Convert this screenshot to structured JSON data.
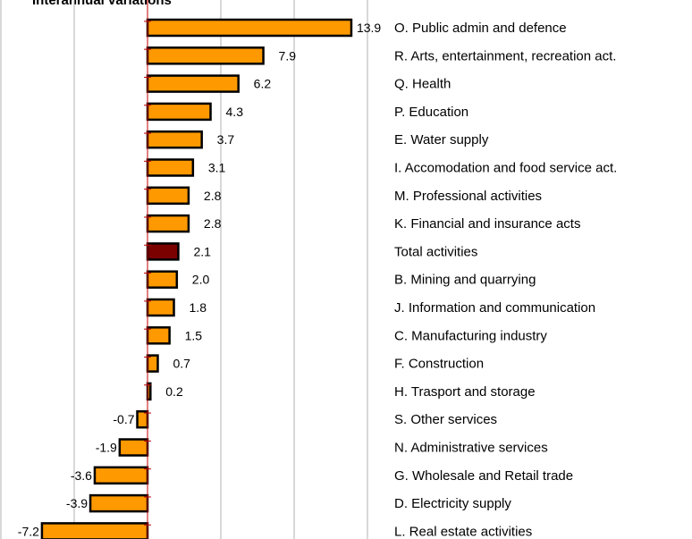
{
  "chart_data": {
    "type": "bar",
    "orientation": "horizontal",
    "title": "Interannual variations",
    "categories": [
      "O. Public admin and defence",
      "R. Arts, entertainment, recreation act.",
      "Q. Health",
      "P. Education",
      "E. Water supply",
      "I. Accomodation and food service act.",
      "M. Professional activities",
      "K. Financial and insurance acts",
      "Total activities",
      "B. Mining and quarrying",
      "J. Information and communication",
      "C. Manufacturing industry",
      "F. Construction",
      "H. Trasport and storage",
      "S. Other services",
      "N. Administrative services",
      "G. Wholesale and Retail trade",
      "D. Electricity supply",
      "L. Real estate activities"
    ],
    "values": [
      13.9,
      7.9,
      6.2,
      4.3,
      3.7,
      3.1,
      2.8,
      2.8,
      2.1,
      2.0,
      1.8,
      1.5,
      0.7,
      0.2,
      -0.7,
      -1.9,
      -3.6,
      -3.9,
      -7.2
    ],
    "value_labels": [
      "13.9",
      "7.9",
      "6.2",
      "4.3",
      "3.7",
      "3.1",
      "2.8",
      "2.8",
      "2.1",
      "2.0",
      "1.8",
      "1.5",
      "0.7",
      "0.2",
      "-0.7",
      "-1.9",
      "-3.6",
      "-3.9",
      "-7.2"
    ],
    "highlight_category": "Total activities",
    "xlim": [
      -10,
      15
    ],
    "gridlines_at": [
      -10,
      -5,
      5,
      10,
      15
    ],
    "grid": true,
    "colors": {
      "bar": "#ff9900",
      "highlight": "#7b0000",
      "bar_edge": "#000000",
      "grid": "#b0b0b0",
      "axis": "#c00000"
    }
  }
}
